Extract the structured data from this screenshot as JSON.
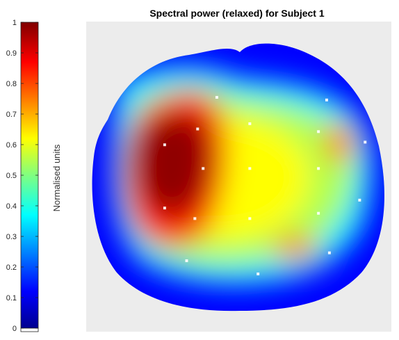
{
  "chart_data": {
    "type": "heatmap",
    "title": "Spectral power (relaxed) for Subject 1",
    "colorbar": {
      "label": "Normalised units",
      "colormap": "jet",
      "range": [
        0,
        1
      ],
      "ticks": [
        "0",
        "0.1",
        "0.2",
        "0.3",
        "0.4",
        "0.5",
        "0.6",
        "0.7",
        "0.8",
        "0.9",
        "1"
      ]
    },
    "map_background": "#ececec",
    "grid": false,
    "electrodes": [
      {
        "x": 0.41,
        "y": 0.81
      },
      {
        "x": 0.81,
        "y": 0.8
      },
      {
        "x": 0.34,
        "y": 0.69
      },
      {
        "x": 0.53,
        "y": 0.71
      },
      {
        "x": 0.78,
        "y": 0.68
      },
      {
        "x": 0.22,
        "y": 0.63
      },
      {
        "x": 0.95,
        "y": 0.64
      },
      {
        "x": 0.36,
        "y": 0.54
      },
      {
        "x": 0.53,
        "y": 0.54
      },
      {
        "x": 0.78,
        "y": 0.54
      },
      {
        "x": 0.22,
        "y": 0.39
      },
      {
        "x": 0.93,
        "y": 0.42
      },
      {
        "x": 0.33,
        "y": 0.35
      },
      {
        "x": 0.53,
        "y": 0.35
      },
      {
        "x": 0.78,
        "y": 0.37
      },
      {
        "x": 0.3,
        "y": 0.19
      },
      {
        "x": 0.56,
        "y": 0.14
      },
      {
        "x": 0.82,
        "y": 0.22
      }
    ]
  }
}
